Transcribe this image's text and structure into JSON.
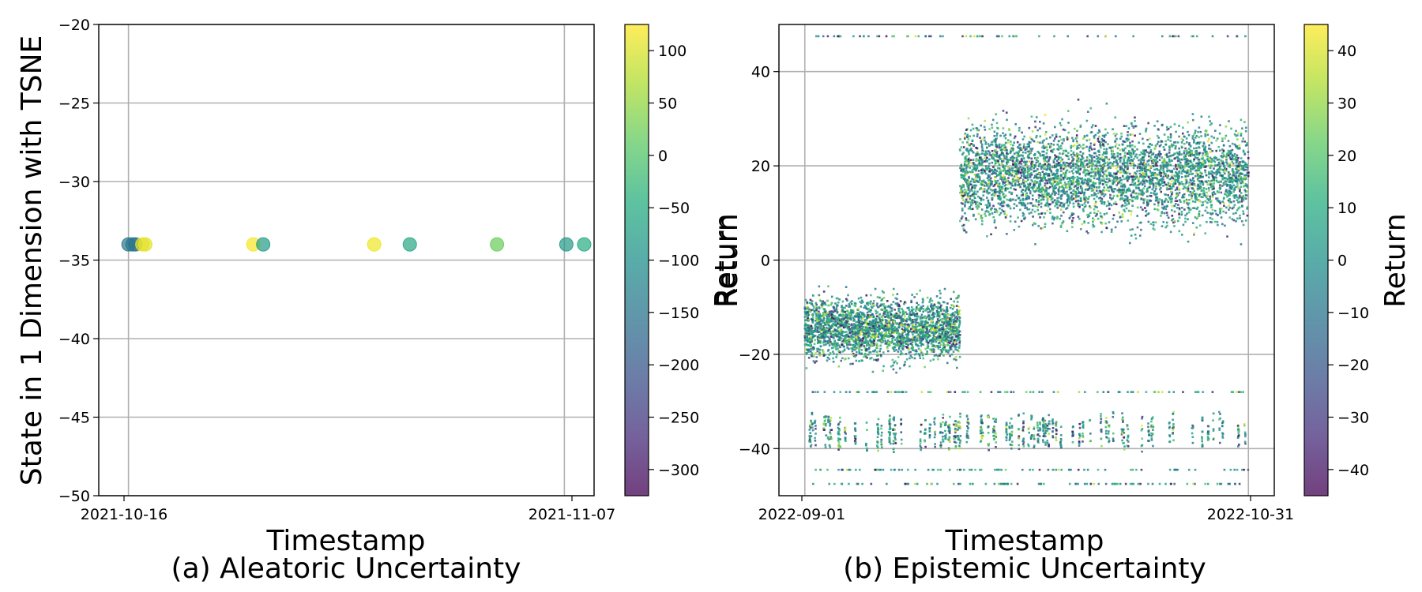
{
  "chart_data": [
    {
      "type": "scatter",
      "panel": "a",
      "caption": "(a) Aleatoric Uncertainty",
      "xlabel": "Timestamp",
      "ylabel": "State in 1 Dimension with TSNE",
      "x_ticks": [
        "2021-10-16",
        "2021-11-07"
      ],
      "xlim_days": [
        -1.5,
        23.5
      ],
      "ylim": [
        -50,
        -20
      ],
      "y_ticks": [
        -20,
        -25,
        -30,
        -35,
        -40,
        -45,
        -50
      ],
      "grid": true,
      "colorbar": {
        "label": "Return",
        "range": [
          -325,
          125
        ],
        "ticks": [
          100,
          50,
          0,
          -50,
          -100,
          -150,
          -200,
          -250,
          -300
        ]
      },
      "points": [
        {
          "day": 0.0,
          "y": -34,
          "return": -150
        },
        {
          "day": 0.2,
          "y": -34,
          "return": -140
        },
        {
          "day": 0.35,
          "y": -34,
          "return": -155
        },
        {
          "day": 0.7,
          "y": -34,
          "return": 110
        },
        {
          "day": 0.85,
          "y": -34,
          "return": 105
        },
        {
          "day": 6.3,
          "y": -34,
          "return": 120
        },
        {
          "day": 6.8,
          "y": -34,
          "return": -80
        },
        {
          "day": 12.4,
          "y": -34,
          "return": 115
        },
        {
          "day": 14.2,
          "y": -34,
          "return": -60
        },
        {
          "day": 18.6,
          "y": -34,
          "return": 20
        },
        {
          "day": 22.1,
          "y": -34,
          "return": -85
        },
        {
          "day": 23.0,
          "y": -34,
          "return": -50
        }
      ]
    },
    {
      "type": "scatter",
      "panel": "b",
      "caption": "(b) Epistemic Uncertainty",
      "xlabel": "Timestamp",
      "ylabel": "Return",
      "x_ticks": [
        "2022-09-01",
        "2022-10-31"
      ],
      "xlim_days": [
        -3.5,
        63.5
      ],
      "ylim": [
        -50,
        50
      ],
      "y_ticks": [
        40,
        20,
        0,
        -20,
        -40
      ],
      "grid": true,
      "colorbar": {
        "label": "Return",
        "range": [
          -45,
          45
        ],
        "ticks": [
          40,
          30,
          20,
          10,
          0,
          -10,
          -20,
          -30,
          -40
        ]
      },
      "clusters": [
        {
          "name": "early dense block",
          "day_range": [
            0,
            21
          ],
          "return_range": [
            -26,
            -3
          ],
          "density": "high"
        },
        {
          "name": "late dense block",
          "day_range": [
            21,
            60
          ],
          "return_range": [
            -2,
            38
          ],
          "density": "high"
        },
        {
          "name": "low-return strips",
          "day_range": [
            0,
            60
          ],
          "return_range": [
            -41,
            -32
          ],
          "density": "medium"
        },
        {
          "name": "sparse top band",
          "day_range": [
            0,
            60
          ],
          "return_value": 47.5,
          "density": "low"
        },
        {
          "name": "sparse bottom bands",
          "day_range": [
            0,
            60
          ],
          "return_values": [
            -28,
            -44.5,
            -47.5
          ],
          "density": "low"
        }
      ]
    }
  ]
}
